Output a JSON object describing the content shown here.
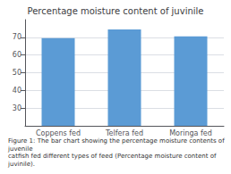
{
  "chart_data": {
    "type": "bar",
    "title": "Percentage moisture content of juvinile",
    "categories": [
      "Coppens fed",
      "Telfera fed",
      "Moringa fed"
    ],
    "values": [
      69.5,
      74.5,
      70.5
    ],
    "color": "#5B9BD5",
    "ylim": [
      20,
      80
    ],
    "yticks": [
      30,
      40,
      50,
      60,
      70
    ],
    "grid": true,
    "annotations": [
      "Figure 1: The bar chart showing the percentage moisture contents of juvenile",
      "catfish fed different types of feed (Percentage moisture content of juvinile)."
    ]
  }
}
